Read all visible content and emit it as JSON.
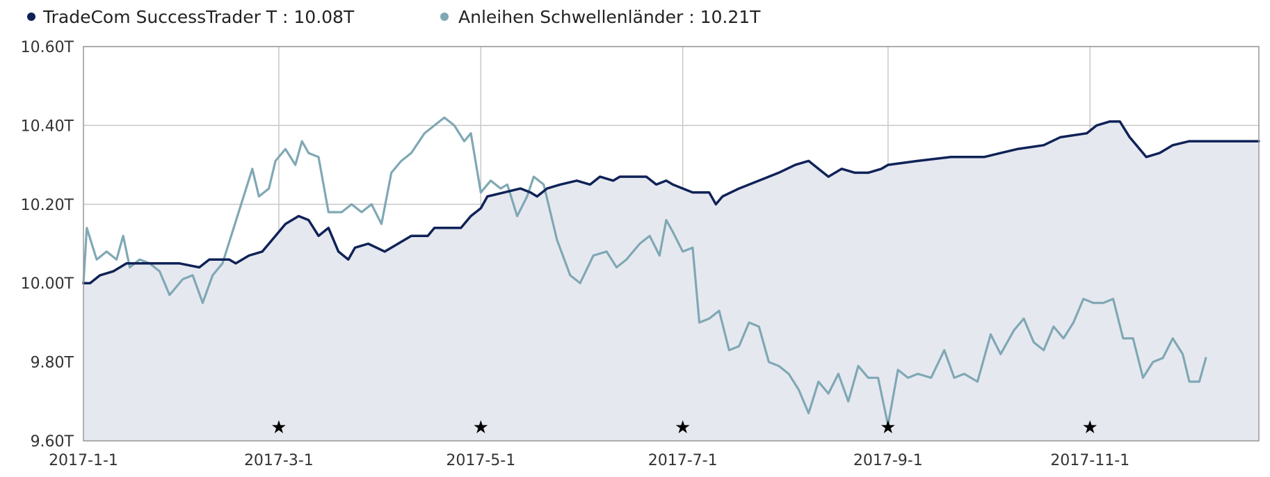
{
  "colors": {
    "series1": "#0f2257",
    "series2": "#7fa8b4",
    "area": "#e6e8f0",
    "grid": "#c8c8c8"
  },
  "legend": [
    {
      "label": "TradeCom SuccessTrader T : 10.08T",
      "color": "#0f2257"
    },
    {
      "label": "Anleihen Schwellenländer : 10.21T",
      "color": "#7fa8b4"
    }
  ],
  "chart_data": {
    "type": "line",
    "title": "",
    "xlabel": "",
    "ylabel": "",
    "ylim": [
      9.6,
      10.6
    ],
    "xlim": [
      "2017-01-01",
      "2017-12-22"
    ],
    "y_ticks": [
      {
        "value": 10.6,
        "label": "10.60T"
      },
      {
        "value": 10.4,
        "label": "10.40T"
      },
      {
        "value": 10.2,
        "label": "10.20T"
      },
      {
        "value": 10.0,
        "label": "10.00T"
      },
      {
        "value": 9.8,
        "label": "9.80T"
      },
      {
        "value": 9.6,
        "label": "9.60T"
      }
    ],
    "x_ticks": [
      {
        "date": "2017-01-01",
        "label": "2017-1-1"
      },
      {
        "date": "2017-03-01",
        "label": "2017-3-1"
      },
      {
        "date": "2017-05-01",
        "label": "2017-5-1"
      },
      {
        "date": "2017-07-01",
        "label": "2017-7-1"
      },
      {
        "date": "2017-09-01",
        "label": "2017-9-1"
      },
      {
        "date": "2017-11-01",
        "label": "2017-11-1"
      }
    ],
    "markers": [
      "2017-03-01",
      "2017-05-01",
      "2017-07-01",
      "2017-09-01",
      "2017-11-01"
    ],
    "grid": true,
    "legend_position": "top-left",
    "series": [
      {
        "name": "TradeCom SuccessTrader T",
        "filled": true,
        "points": [
          [
            "2017-01-01",
            10.0
          ],
          [
            "2017-01-03",
            10.0
          ],
          [
            "2017-01-06",
            10.02
          ],
          [
            "2017-01-10",
            10.03
          ],
          [
            "2017-01-14",
            10.05
          ],
          [
            "2017-01-20",
            10.05
          ],
          [
            "2017-01-30",
            10.05
          ],
          [
            "2017-02-05",
            10.04
          ],
          [
            "2017-02-08",
            10.06
          ],
          [
            "2017-02-14",
            10.06
          ],
          [
            "2017-02-16",
            10.05
          ],
          [
            "2017-02-20",
            10.07
          ],
          [
            "2017-02-24",
            10.08
          ],
          [
            "2017-03-01",
            10.13
          ],
          [
            "2017-03-03",
            10.15
          ],
          [
            "2017-03-07",
            10.17
          ],
          [
            "2017-03-10",
            10.16
          ],
          [
            "2017-03-13",
            10.12
          ],
          [
            "2017-03-16",
            10.14
          ],
          [
            "2017-03-19",
            10.08
          ],
          [
            "2017-03-22",
            10.06
          ],
          [
            "2017-03-24",
            10.09
          ],
          [
            "2017-03-28",
            10.1
          ],
          [
            "2017-04-02",
            10.08
          ],
          [
            "2017-04-06",
            10.1
          ],
          [
            "2017-04-10",
            10.12
          ],
          [
            "2017-04-15",
            10.12
          ],
          [
            "2017-04-17",
            10.14
          ],
          [
            "2017-04-25",
            10.14
          ],
          [
            "2017-04-28",
            10.17
          ],
          [
            "2017-05-01",
            10.19
          ],
          [
            "2017-05-03",
            10.22
          ],
          [
            "2017-05-08",
            10.23
          ],
          [
            "2017-05-13",
            10.24
          ],
          [
            "2017-05-16",
            10.23
          ],
          [
            "2017-05-18",
            10.22
          ],
          [
            "2017-05-21",
            10.24
          ],
          [
            "2017-05-25",
            10.25
          ],
          [
            "2017-05-30",
            10.26
          ],
          [
            "2017-06-03",
            10.25
          ],
          [
            "2017-06-06",
            10.27
          ],
          [
            "2017-06-10",
            10.26
          ],
          [
            "2017-06-12",
            10.27
          ],
          [
            "2017-06-20",
            10.27
          ],
          [
            "2017-06-23",
            10.25
          ],
          [
            "2017-06-26",
            10.26
          ],
          [
            "2017-06-28",
            10.25
          ],
          [
            "2017-07-01",
            10.24
          ],
          [
            "2017-07-04",
            10.23
          ],
          [
            "2017-07-09",
            10.23
          ],
          [
            "2017-07-11",
            10.2
          ],
          [
            "2017-07-13",
            10.22
          ],
          [
            "2017-07-18",
            10.24
          ],
          [
            "2017-07-24",
            10.26
          ],
          [
            "2017-07-30",
            10.28
          ],
          [
            "2017-08-04",
            10.3
          ],
          [
            "2017-08-08",
            10.31
          ],
          [
            "2017-08-11",
            10.29
          ],
          [
            "2017-08-14",
            10.27
          ],
          [
            "2017-08-18",
            10.29
          ],
          [
            "2017-08-22",
            10.28
          ],
          [
            "2017-08-26",
            10.28
          ],
          [
            "2017-08-30",
            10.29
          ],
          [
            "2017-09-01",
            10.3
          ],
          [
            "2017-09-10",
            10.31
          ],
          [
            "2017-09-20",
            10.32
          ],
          [
            "2017-09-30",
            10.32
          ],
          [
            "2017-10-05",
            10.33
          ],
          [
            "2017-10-10",
            10.34
          ],
          [
            "2017-10-18",
            10.35
          ],
          [
            "2017-10-23",
            10.37
          ],
          [
            "2017-10-31",
            10.38
          ],
          [
            "2017-11-03",
            10.4
          ],
          [
            "2017-11-07",
            10.41
          ],
          [
            "2017-11-10",
            10.41
          ],
          [
            "2017-11-13",
            10.37
          ],
          [
            "2017-11-15",
            10.35
          ],
          [
            "2017-11-18",
            10.32
          ],
          [
            "2017-11-22",
            10.33
          ],
          [
            "2017-11-26",
            10.35
          ],
          [
            "2017-12-01",
            10.36
          ],
          [
            "2017-12-22",
            10.36
          ]
        ]
      },
      {
        "name": "Anleihen Schwellenländer",
        "filled": false,
        "points": [
          [
            "2017-01-01",
            10.0
          ],
          [
            "2017-01-02",
            10.14
          ],
          [
            "2017-01-05",
            10.06
          ],
          [
            "2017-01-08",
            10.08
          ],
          [
            "2017-01-11",
            10.06
          ],
          [
            "2017-01-13",
            10.12
          ],
          [
            "2017-01-15",
            10.04
          ],
          [
            "2017-01-18",
            10.06
          ],
          [
            "2017-01-21",
            10.05
          ],
          [
            "2017-01-24",
            10.03
          ],
          [
            "2017-01-27",
            9.97
          ],
          [
            "2017-01-31",
            10.01
          ],
          [
            "2017-02-03",
            10.02
          ],
          [
            "2017-02-06",
            9.95
          ],
          [
            "2017-02-09",
            10.02
          ],
          [
            "2017-02-12",
            10.05
          ],
          [
            "2017-02-15",
            10.13
          ],
          [
            "2017-02-18",
            10.21
          ],
          [
            "2017-02-21",
            10.29
          ],
          [
            "2017-02-23",
            10.22
          ],
          [
            "2017-02-26",
            10.24
          ],
          [
            "2017-02-28",
            10.31
          ],
          [
            "2017-03-03",
            10.34
          ],
          [
            "2017-03-06",
            10.3
          ],
          [
            "2017-03-08",
            10.36
          ],
          [
            "2017-03-10",
            10.33
          ],
          [
            "2017-03-13",
            10.32
          ],
          [
            "2017-03-16",
            10.18
          ],
          [
            "2017-03-20",
            10.18
          ],
          [
            "2017-03-23",
            10.2
          ],
          [
            "2017-03-26",
            10.18
          ],
          [
            "2017-03-29",
            10.2
          ],
          [
            "2017-04-01",
            10.15
          ],
          [
            "2017-04-04",
            10.28
          ],
          [
            "2017-04-07",
            10.31
          ],
          [
            "2017-04-10",
            10.33
          ],
          [
            "2017-04-14",
            10.38
          ],
          [
            "2017-04-17",
            10.4
          ],
          [
            "2017-04-20",
            10.42
          ],
          [
            "2017-04-23",
            10.4
          ],
          [
            "2017-04-26",
            10.36
          ],
          [
            "2017-04-28",
            10.38
          ],
          [
            "2017-05-01",
            10.23
          ],
          [
            "2017-05-04",
            10.26
          ],
          [
            "2017-05-07",
            10.24
          ],
          [
            "2017-05-09",
            10.25
          ],
          [
            "2017-05-12",
            10.17
          ],
          [
            "2017-05-15",
            10.22
          ],
          [
            "2017-05-17",
            10.27
          ],
          [
            "2017-05-20",
            10.25
          ],
          [
            "2017-05-24",
            10.11
          ],
          [
            "2017-05-28",
            10.02
          ],
          [
            "2017-05-31",
            10.0
          ],
          [
            "2017-06-04",
            10.07
          ],
          [
            "2017-06-08",
            10.08
          ],
          [
            "2017-06-11",
            10.04
          ],
          [
            "2017-06-14",
            10.06
          ],
          [
            "2017-06-18",
            10.1
          ],
          [
            "2017-06-21",
            10.12
          ],
          [
            "2017-06-24",
            10.07
          ],
          [
            "2017-06-26",
            10.16
          ],
          [
            "2017-06-28",
            10.13
          ],
          [
            "2017-07-01",
            10.08
          ],
          [
            "2017-07-04",
            10.09
          ],
          [
            "2017-07-06",
            9.9
          ],
          [
            "2017-07-09",
            9.91
          ],
          [
            "2017-07-12",
            9.93
          ],
          [
            "2017-07-15",
            9.83
          ],
          [
            "2017-07-18",
            9.84
          ],
          [
            "2017-07-21",
            9.9
          ],
          [
            "2017-07-24",
            9.89
          ],
          [
            "2017-07-27",
            9.8
          ],
          [
            "2017-07-30",
            9.79
          ],
          [
            "2017-08-02",
            9.77
          ],
          [
            "2017-08-05",
            9.73
          ],
          [
            "2017-08-08",
            9.67
          ],
          [
            "2017-08-11",
            9.75
          ],
          [
            "2017-08-14",
            9.72
          ],
          [
            "2017-08-17",
            9.77
          ],
          [
            "2017-08-20",
            9.7
          ],
          [
            "2017-08-23",
            9.79
          ],
          [
            "2017-08-26",
            9.76
          ],
          [
            "2017-08-29",
            9.76
          ],
          [
            "2017-09-01",
            9.64
          ],
          [
            "2017-09-04",
            9.78
          ],
          [
            "2017-09-07",
            9.76
          ],
          [
            "2017-09-10",
            9.77
          ],
          [
            "2017-09-14",
            9.76
          ],
          [
            "2017-09-18",
            9.83
          ],
          [
            "2017-09-21",
            9.76
          ],
          [
            "2017-09-24",
            9.77
          ],
          [
            "2017-09-28",
            9.75
          ],
          [
            "2017-10-02",
            9.87
          ],
          [
            "2017-10-05",
            9.82
          ],
          [
            "2017-10-09",
            9.88
          ],
          [
            "2017-10-12",
            9.91
          ],
          [
            "2017-10-15",
            9.85
          ],
          [
            "2017-10-18",
            9.83
          ],
          [
            "2017-10-21",
            9.89
          ],
          [
            "2017-10-24",
            9.86
          ],
          [
            "2017-10-27",
            9.9
          ],
          [
            "2017-10-30",
            9.96
          ],
          [
            "2017-11-02",
            9.95
          ],
          [
            "2017-11-05",
            9.95
          ],
          [
            "2017-11-08",
            9.96
          ],
          [
            "2017-11-11",
            9.86
          ],
          [
            "2017-11-14",
            9.86
          ],
          [
            "2017-11-17",
            9.76
          ],
          [
            "2017-11-20",
            9.8
          ],
          [
            "2017-11-23",
            9.81
          ],
          [
            "2017-11-26",
            9.86
          ],
          [
            "2017-11-29",
            9.82
          ],
          [
            "2017-12-01",
            9.75
          ],
          [
            "2017-12-04",
            9.75
          ],
          [
            "2017-12-06",
            9.81
          ]
        ]
      }
    ]
  }
}
